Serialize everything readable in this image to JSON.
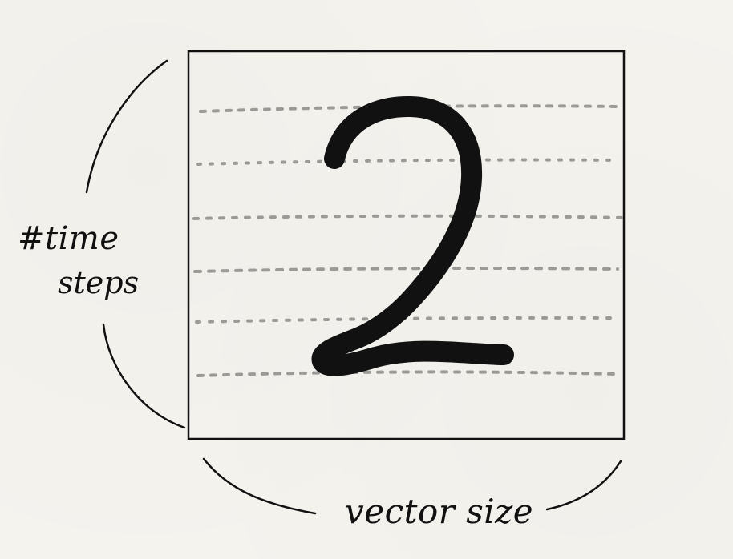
{
  "labels": {
    "time_line1": "#time",
    "time_line2": "steps",
    "size": "vector size",
    "digit": "2"
  },
  "colors": {
    "ink": "#111111",
    "dots": "#9a9a96",
    "paper": "#f5f3ee"
  }
}
